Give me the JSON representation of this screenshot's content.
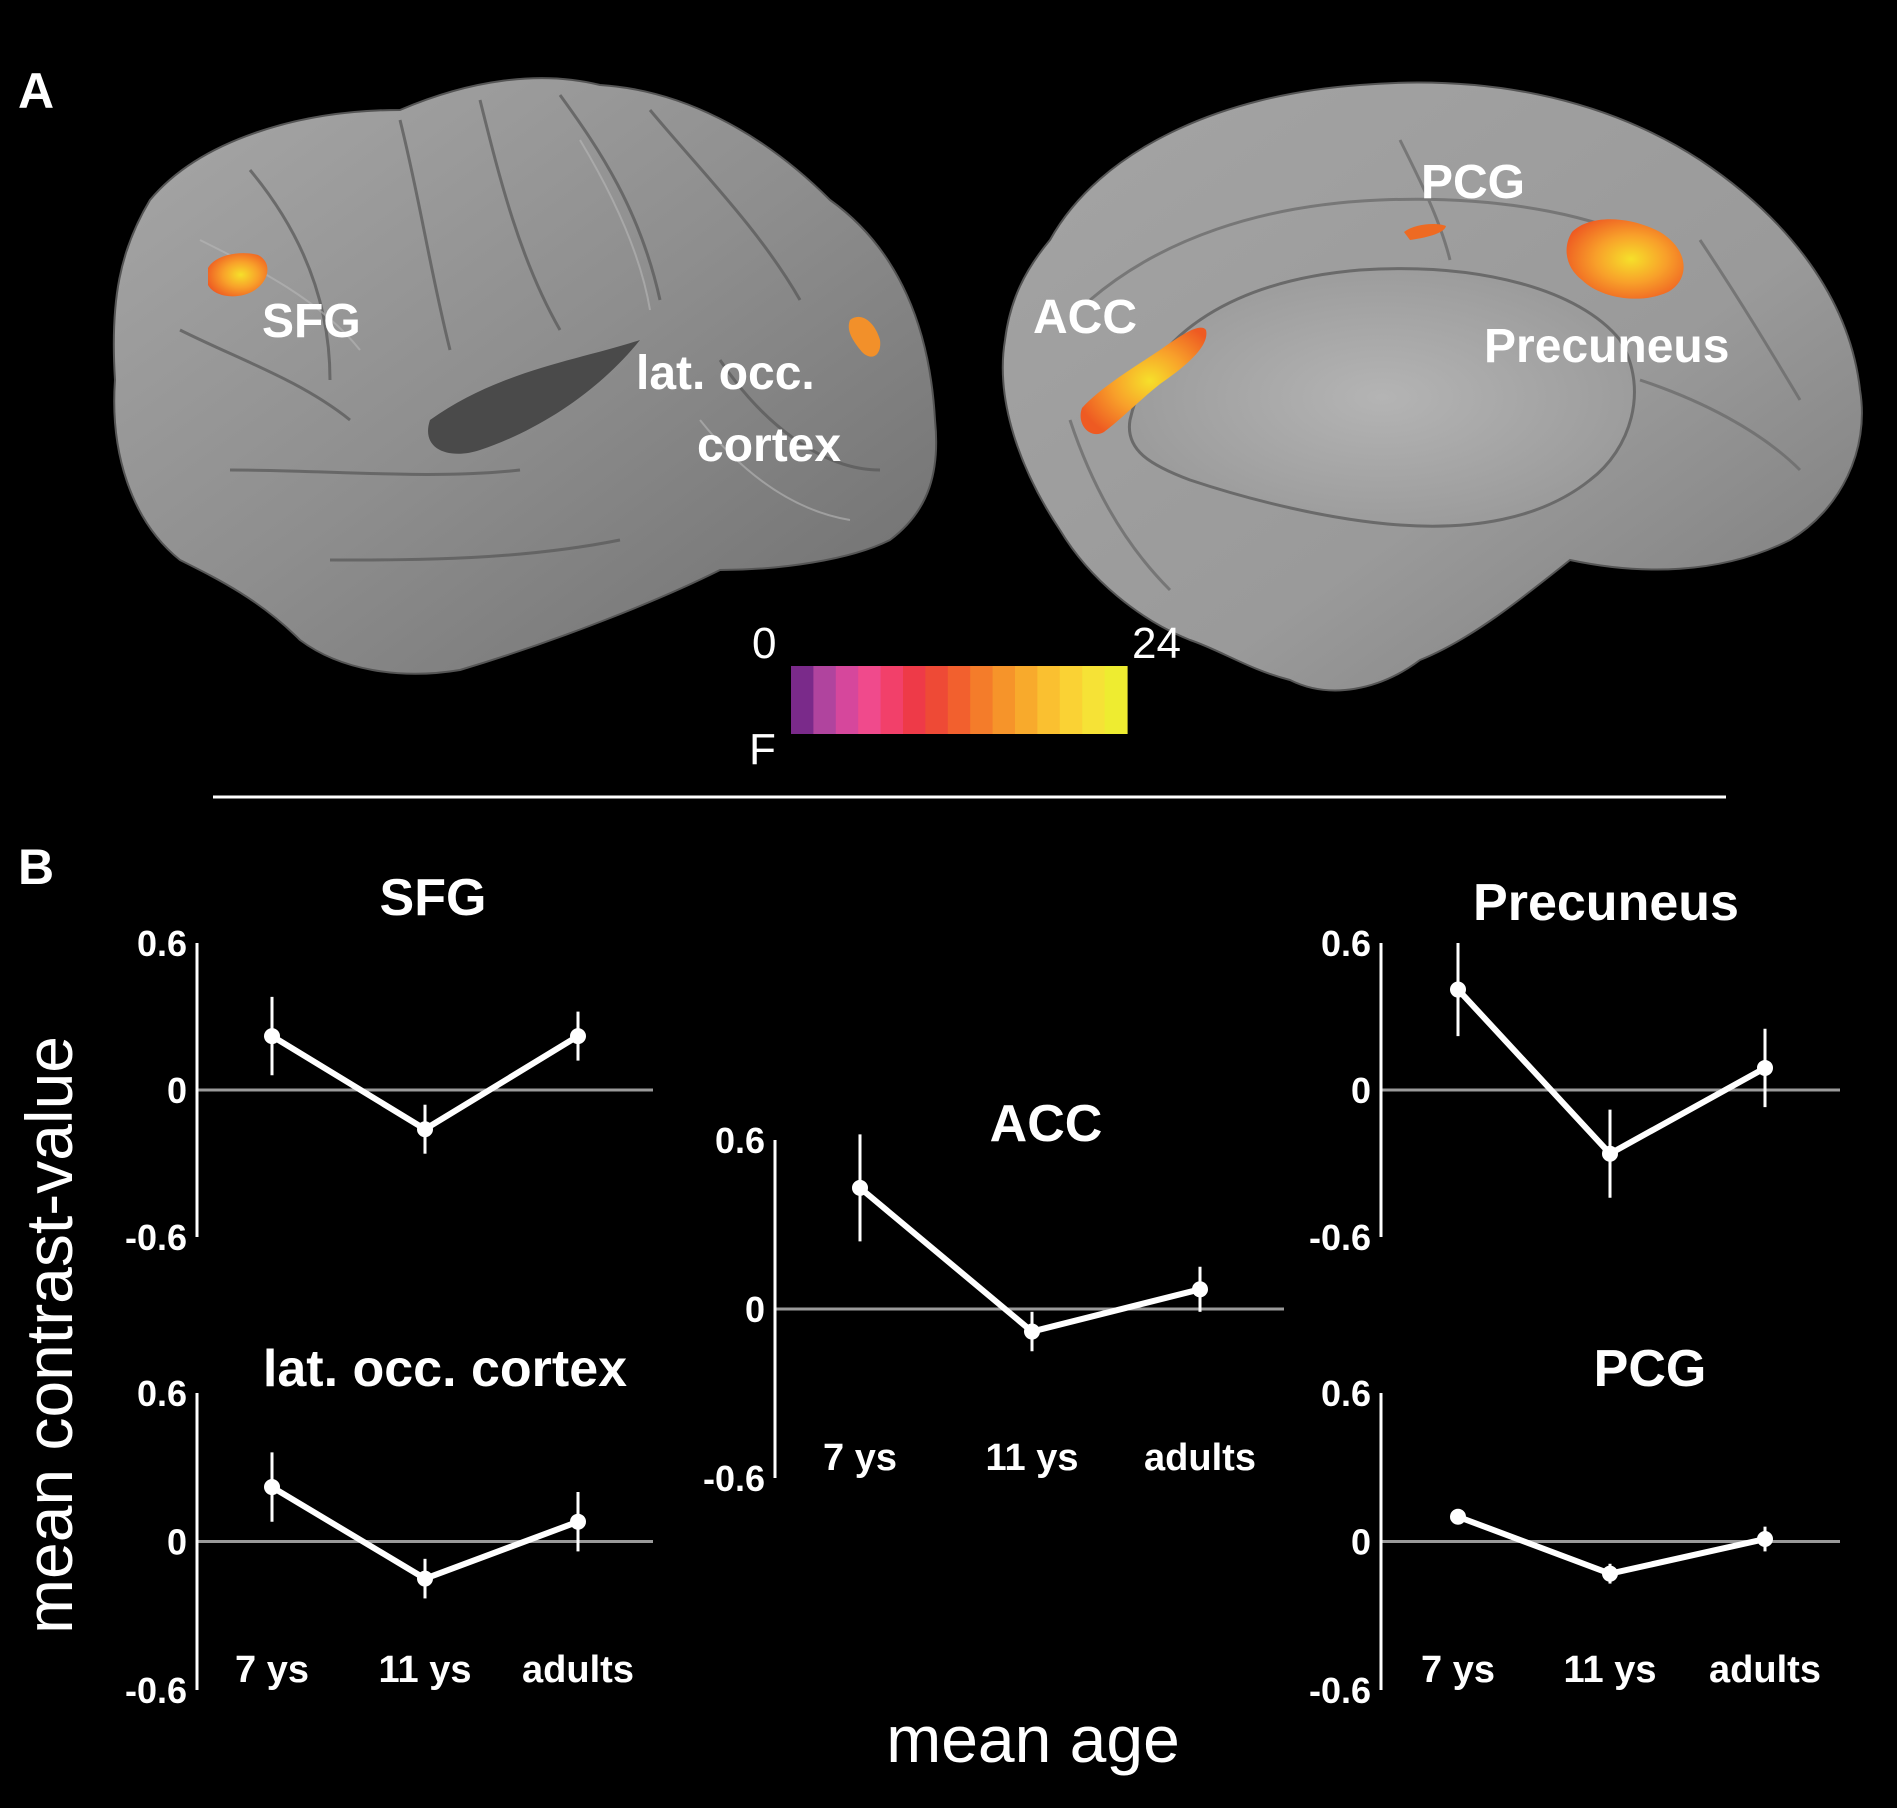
{
  "panel_a": {
    "letter": "A",
    "brain_lateral": {
      "labels": {
        "sfg": "SFG",
        "lat_occ_1": "lat. occ.",
        "lat_occ_2": "cortex"
      }
    },
    "brain_medial": {
      "labels": {
        "pcg": "PCG",
        "acc": "ACC",
        "precuneus": "Precuneus"
      }
    },
    "colorbar": {
      "min_label": "0",
      "max_label": "24",
      "stat_label": "F",
      "colors": [
        "#7a2a8a",
        "#b0449e",
        "#d6479c",
        "#f04a8c",
        "#f2406a",
        "#ee3a48",
        "#ee4a36",
        "#f2602e",
        "#f47c2a",
        "#f6942a",
        "#f8aa2c",
        "#fac030",
        "#fad234",
        "#f6e236",
        "#eeec30"
      ]
    },
    "activation_colors": {
      "orange": "#f47c1c",
      "yellow": "#f6d22a",
      "red": "#e84a20"
    }
  },
  "panel_b": {
    "letter": "B",
    "ylabel": "mean contrast-value",
    "xlabel": "mean age"
  },
  "chart_data": [
    {
      "type": "line",
      "title": "SFG",
      "categories": [
        "7 ys",
        "11 ys",
        "adults"
      ],
      "values": [
        0.22,
        -0.16,
        0.22
      ],
      "error": [
        0.16,
        0.1,
        0.1
      ],
      "ylim": [
        -0.6,
        0.6
      ],
      "yticks": [
        "0.6",
        "0",
        "-0.6"
      ],
      "show_categories": false
    },
    {
      "type": "line",
      "title": "lat. occ. cortex",
      "categories": [
        "7 ys",
        "11 ys",
        "adults"
      ],
      "values": [
        0.22,
        -0.15,
        0.08
      ],
      "error": [
        0.14,
        0.08,
        0.12
      ],
      "ylim": [
        -0.6,
        0.6
      ],
      "yticks": [
        "0.6",
        "0",
        "-0.6"
      ],
      "show_categories": true
    },
    {
      "type": "line",
      "title": "ACC",
      "categories": [
        "7 ys",
        "11 ys",
        "adults"
      ],
      "values": [
        0.43,
        -0.08,
        0.07
      ],
      "error": [
        0.19,
        0.07,
        0.08
      ],
      "ylim": [
        -0.6,
        0.6
      ],
      "yticks": [
        "0.6",
        "0",
        "-0.6"
      ],
      "show_categories": true
    },
    {
      "type": "line",
      "title": "Precuneus",
      "categories": [
        "7 ys",
        "11 ys",
        "adults"
      ],
      "values": [
        0.41,
        -0.26,
        0.09
      ],
      "error": [
        0.19,
        0.18,
        0.16
      ],
      "ylim": [
        -0.6,
        0.6
      ],
      "yticks": [
        "0.6",
        "0",
        "-0.6"
      ],
      "show_categories": false
    },
    {
      "type": "line",
      "title": "PCG",
      "categories": [
        "7 ys",
        "11 ys",
        "adults"
      ],
      "values": [
        0.1,
        -0.13,
        0.01
      ],
      "error": [
        0.03,
        0.04,
        0.05
      ],
      "ylim": [
        -0.6,
        0.6
      ],
      "yticks": [
        "0.6",
        "0",
        "-0.6"
      ],
      "show_categories": true
    }
  ]
}
